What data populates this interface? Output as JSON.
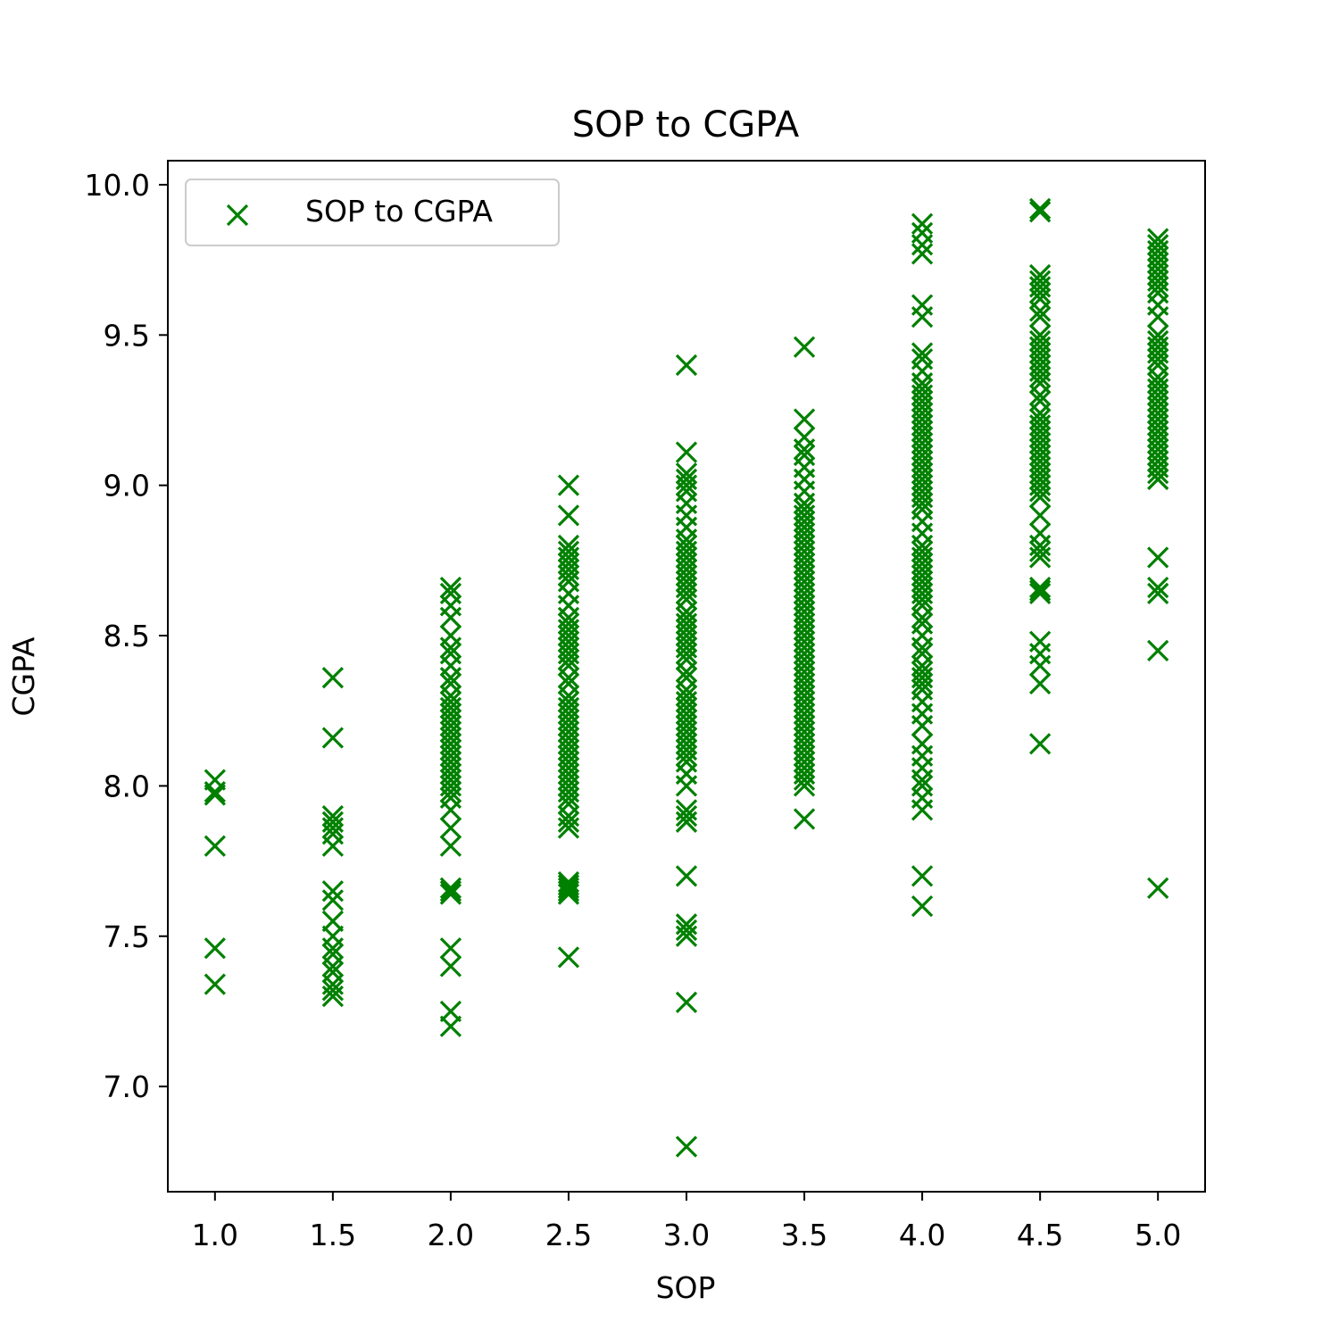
{
  "chart_data": {
    "type": "scatter",
    "title": "SOP to CGPA",
    "xlabel": "SOP",
    "ylabel": "CGPA",
    "xlim": [
      0.8,
      5.2
    ],
    "ylim": [
      6.65,
      10.08
    ],
    "x_ticks": [
      "1.0",
      "1.5",
      "2.0",
      "2.5",
      "3.0",
      "3.5",
      "4.0",
      "4.5",
      "5.0"
    ],
    "y_ticks": [
      "7.0",
      "7.5",
      "8.0",
      "8.5",
      "9.0",
      "9.5",
      "10.0"
    ],
    "grid": false,
    "legend_position": "top-left",
    "marker": "x",
    "color": "#008000",
    "series": [
      {
        "name": "SOP to CGPA",
        "groups": [
          {
            "x": 1.0,
            "y": [
              8.02,
              7.98,
              7.97,
              7.8,
              7.46,
              7.34
            ]
          },
          {
            "x": 1.5,
            "y": [
              8.36,
              8.16,
              7.9,
              7.88,
              7.86,
              7.84,
              7.8,
              7.65,
              7.62,
              7.55,
              7.5,
              7.46,
              7.44,
              7.4,
              7.38,
              7.34,
              7.32,
              7.3
            ]
          },
          {
            "x": 2.0,
            "y": [
              8.66,
              8.64,
              8.6,
              8.56,
              8.5,
              8.46,
              8.44,
              8.4,
              8.36,
              8.34,
              8.3,
              8.28,
              8.26,
              8.24,
              8.22,
              8.2,
              8.18,
              8.16,
              8.14,
              8.12,
              8.1,
              8.08,
              8.06,
              8.04,
              8.02,
              8.0,
              7.98,
              7.96,
              7.92,
              7.86,
              7.8,
              7.66,
              7.65,
              7.64,
              7.46,
              7.4,
              7.25,
              7.2
            ]
          },
          {
            "x": 2.5,
            "y": [
              9.0,
              8.9,
              8.8,
              8.78,
              8.76,
              8.74,
              8.72,
              8.7,
              8.68,
              8.64,
              8.6,
              8.56,
              8.54,
              8.52,
              8.5,
              8.48,
              8.46,
              8.44,
              8.42,
              8.4,
              8.36,
              8.34,
              8.3,
              8.28,
              8.26,
              8.24,
              8.22,
              8.2,
              8.18,
              8.16,
              8.14,
              8.12,
              8.1,
              8.08,
              8.06,
              8.04,
              8.02,
              8.0,
              7.98,
              7.96,
              7.94,
              7.9,
              7.88,
              7.86,
              7.68,
              7.67,
              7.66,
              7.65,
              7.64,
              7.43
            ]
          },
          {
            "x": 3.0,
            "y": [
              9.4,
              9.11,
              9.04,
              9.02,
              9.0,
              8.98,
              8.94,
              8.9,
              8.86,
              8.82,
              8.8,
              8.78,
              8.76,
              8.74,
              8.72,
              8.7,
              8.68,
              8.66,
              8.64,
              8.62,
              8.58,
              8.56,
              8.54,
              8.52,
              8.5,
              8.48,
              8.46,
              8.44,
              8.42,
              8.38,
              8.36,
              8.32,
              8.3,
              8.28,
              8.26,
              8.24,
              8.22,
              8.2,
              8.18,
              8.16,
              8.14,
              8.12,
              8.1,
              8.08,
              8.04,
              8.0,
              7.92,
              7.9,
              7.88,
              7.7,
              7.54,
              7.52,
              7.5,
              7.28,
              6.8
            ]
          },
          {
            "x": 3.5,
            "y": [
              9.46,
              9.22,
              9.16,
              9.12,
              9.1,
              9.06,
              9.02,
              8.98,
              8.94,
              8.92,
              8.9,
              8.88,
              8.86,
              8.84,
              8.82,
              8.8,
              8.78,
              8.76,
              8.74,
              8.72,
              8.7,
              8.68,
              8.66,
              8.64,
              8.62,
              8.6,
              8.58,
              8.56,
              8.54,
              8.52,
              8.5,
              8.48,
              8.46,
              8.44,
              8.42,
              8.4,
              8.38,
              8.36,
              8.34,
              8.32,
              8.3,
              8.28,
              8.26,
              8.24,
              8.22,
              8.2,
              8.18,
              8.16,
              8.14,
              8.12,
              8.1,
              8.08,
              8.06,
              8.04,
              8.02,
              8.0,
              7.89
            ]
          },
          {
            "x": 4.0,
            "y": [
              9.87,
              9.84,
              9.8,
              9.77,
              9.6,
              9.56,
              9.44,
              9.42,
              9.38,
              9.34,
              9.32,
              9.3,
              9.28,
              9.26,
              9.24,
              9.22,
              9.2,
              9.18,
              9.16,
              9.14,
              9.12,
              9.1,
              9.08,
              9.06,
              9.04,
              9.02,
              9.0,
              8.98,
              8.96,
              8.94,
              8.92,
              8.88,
              8.84,
              8.8,
              8.78,
              8.76,
              8.74,
              8.72,
              8.7,
              8.68,
              8.66,
              8.64,
              8.62,
              8.6,
              8.56,
              8.54,
              8.5,
              8.46,
              8.44,
              8.4,
              8.38,
              8.36,
              8.34,
              8.32,
              8.28,
              8.24,
              8.2,
              8.14,
              8.1,
              8.06,
              8.02,
              8.0,
              7.96,
              7.92,
              7.7,
              7.6
            ]
          },
          {
            "x": 4.5,
            "y": [
              9.92,
              9.91,
              9.7,
              9.68,
              9.66,
              9.64,
              9.62,
              9.58,
              9.56,
              9.5,
              9.48,
              9.46,
              9.44,
              9.42,
              9.4,
              9.38,
              9.36,
              9.34,
              9.3,
              9.28,
              9.24,
              9.22,
              9.2,
              9.18,
              9.16,
              9.14,
              9.12,
              9.1,
              9.08,
              9.06,
              9.04,
              9.02,
              9.0,
              8.98,
              8.96,
              8.9,
              8.84,
              8.8,
              8.78,
              8.76,
              8.66,
              8.65,
              8.64,
              8.48,
              8.44,
              8.4,
              8.34,
              8.14
            ]
          },
          {
            "x": 5.0,
            "y": [
              9.82,
              9.8,
              9.78,
              9.76,
              9.74,
              9.72,
              9.7,
              9.68,
              9.66,
              9.64,
              9.6,
              9.56,
              9.5,
              9.48,
              9.46,
              9.44,
              9.42,
              9.4,
              9.36,
              9.34,
              9.32,
              9.3,
              9.28,
              9.26,
              9.24,
              9.22,
              9.2,
              9.18,
              9.16,
              9.14,
              9.12,
              9.1,
              9.08,
              9.06,
              9.04,
              9.02,
              8.76,
              8.66,
              8.64,
              8.45,
              7.66
            ]
          }
        ]
      }
    ]
  }
}
